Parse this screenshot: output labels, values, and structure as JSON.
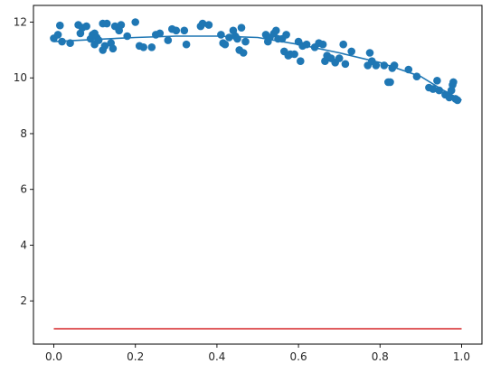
{
  "chart_data": {
    "type": "scatter",
    "title": "",
    "xlabel": "",
    "ylabel": "",
    "xlim": [
      -0.05,
      1.05
    ],
    "ylim": [
      0.45,
      12.6
    ],
    "grid": false,
    "x_ticks": [
      0.0,
      0.2,
      0.4,
      0.6,
      0.8,
      1.0
    ],
    "x_tick_labels": [
      "0.0",
      "0.2",
      "0.4",
      "0.6",
      "0.8",
      "1.0"
    ],
    "y_ticks": [
      2,
      4,
      6,
      8,
      10,
      12
    ],
    "y_tick_labels": [
      "2",
      "4",
      "6",
      "8",
      "10",
      "12"
    ],
    "series": [
      {
        "kind": "scatter",
        "color": "#1f77b4",
        "points": [
          [
            0.0,
            11.42
          ],
          [
            0.01,
            11.55
          ],
          [
            0.015,
            11.88
          ],
          [
            0.02,
            11.3
          ],
          [
            0.04,
            11.25
          ],
          [
            0.06,
            11.9
          ],
          [
            0.065,
            11.6
          ],
          [
            0.07,
            11.8
          ],
          [
            0.08,
            11.85
          ],
          [
            0.09,
            11.4
          ],
          [
            0.095,
            11.55
          ],
          [
            0.1,
            11.6
          ],
          [
            0.1,
            11.2
          ],
          [
            0.105,
            11.45
          ],
          [
            0.11,
            11.35
          ],
          [
            0.12,
            11.0
          ],
          [
            0.12,
            11.95
          ],
          [
            0.125,
            11.15
          ],
          [
            0.13,
            11.95
          ],
          [
            0.14,
            11.25
          ],
          [
            0.145,
            11.05
          ],
          [
            0.15,
            11.85
          ],
          [
            0.16,
            11.7
          ],
          [
            0.165,
            11.9
          ],
          [
            0.18,
            11.5
          ],
          [
            0.2,
            12.0
          ],
          [
            0.21,
            11.15
          ],
          [
            0.22,
            11.1
          ],
          [
            0.24,
            11.1
          ],
          [
            0.25,
            11.55
          ],
          [
            0.26,
            11.6
          ],
          [
            0.28,
            11.35
          ],
          [
            0.29,
            11.75
          ],
          [
            0.3,
            11.7
          ],
          [
            0.32,
            11.7
          ],
          [
            0.325,
            11.2
          ],
          [
            0.36,
            11.85
          ],
          [
            0.365,
            11.95
          ],
          [
            0.38,
            11.9
          ],
          [
            0.41,
            11.55
          ],
          [
            0.415,
            11.25
          ],
          [
            0.42,
            11.2
          ],
          [
            0.43,
            11.45
          ],
          [
            0.44,
            11.7
          ],
          [
            0.445,
            11.5
          ],
          [
            0.45,
            11.4
          ],
          [
            0.455,
            11.0
          ],
          [
            0.46,
            11.8
          ],
          [
            0.465,
            10.9
          ],
          [
            0.47,
            11.3
          ],
          [
            0.52,
            11.55
          ],
          [
            0.525,
            11.3
          ],
          [
            0.53,
            11.45
          ],
          [
            0.54,
            11.6
          ],
          [
            0.545,
            11.7
          ],
          [
            0.55,
            11.4
          ],
          [
            0.56,
            11.4
          ],
          [
            0.565,
            10.95
          ],
          [
            0.57,
            11.55
          ],
          [
            0.575,
            10.8
          ],
          [
            0.58,
            10.85
          ],
          [
            0.59,
            10.85
          ],
          [
            0.6,
            11.3
          ],
          [
            0.605,
            10.6
          ],
          [
            0.61,
            11.15
          ],
          [
            0.62,
            11.2
          ],
          [
            0.64,
            11.1
          ],
          [
            0.65,
            11.25
          ],
          [
            0.66,
            11.2
          ],
          [
            0.665,
            10.6
          ],
          [
            0.67,
            10.8
          ],
          [
            0.68,
            10.7
          ],
          [
            0.69,
            10.55
          ],
          [
            0.7,
            10.7
          ],
          [
            0.71,
            11.2
          ],
          [
            0.715,
            10.5
          ],
          [
            0.73,
            10.95
          ],
          [
            0.77,
            10.45
          ],
          [
            0.775,
            10.9
          ],
          [
            0.78,
            10.6
          ],
          [
            0.79,
            10.45
          ],
          [
            0.81,
            10.45
          ],
          [
            0.82,
            9.85
          ],
          [
            0.825,
            9.85
          ],
          [
            0.83,
            10.35
          ],
          [
            0.835,
            10.45
          ],
          [
            0.87,
            10.3
          ],
          [
            0.89,
            10.05
          ],
          [
            0.92,
            9.65
          ],
          [
            0.93,
            9.6
          ],
          [
            0.94,
            9.9
          ],
          [
            0.945,
            9.55
          ],
          [
            0.96,
            9.4
          ],
          [
            0.97,
            9.3
          ],
          [
            0.975,
            9.55
          ],
          [
            0.978,
            9.75
          ],
          [
            0.98,
            9.85
          ],
          [
            0.985,
            9.25
          ],
          [
            0.99,
            9.2
          ]
        ]
      },
      {
        "kind": "line",
        "color": "#1f77b4",
        "x": [
          0.0,
          0.1,
          0.2,
          0.3,
          0.4,
          0.5,
          0.6,
          0.7,
          0.8,
          0.9,
          0.95,
          1.0
        ],
        "y": [
          11.3,
          11.38,
          11.45,
          11.5,
          11.5,
          11.45,
          11.2,
          10.9,
          10.55,
          10.05,
          9.6,
          9.2
        ]
      },
      {
        "kind": "line",
        "color": "#d62728",
        "x": [
          0.0,
          1.0
        ],
        "y": [
          1.0,
          1.0
        ]
      }
    ]
  }
}
